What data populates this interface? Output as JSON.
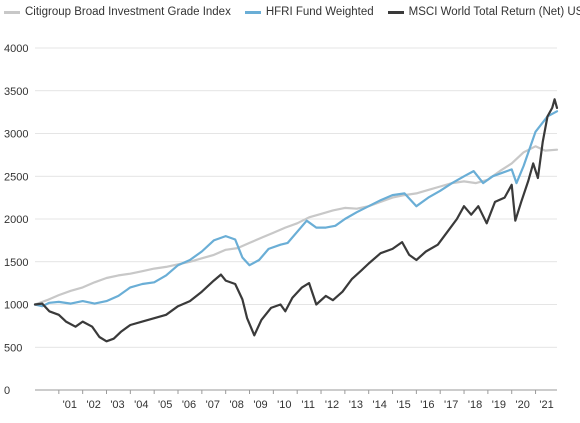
{
  "chart_data": {
    "type": "line",
    "title": "",
    "xlabel": "",
    "ylabel": "",
    "ylim": [
      0,
      4000
    ],
    "y_ticks": [
      0,
      500,
      1000,
      1500,
      2000,
      2500,
      3000,
      3500,
      4000
    ],
    "x_range": [
      2000.0,
      2021.9
    ],
    "x_ticks": [
      {
        "label": "'01",
        "x": 2001
      },
      {
        "label": "'02",
        "x": 2002
      },
      {
        "label": "'03",
        "x": 2003
      },
      {
        "label": "'04",
        "x": 2004
      },
      {
        "label": "'05",
        "x": 2005
      },
      {
        "label": "'06",
        "x": 2006
      },
      {
        "label": "'07",
        "x": 2007
      },
      {
        "label": "'08",
        "x": 2008
      },
      {
        "label": "'09",
        "x": 2009
      },
      {
        "label": "'10",
        "x": 2010
      },
      {
        "label": "'11",
        "x": 2011
      },
      {
        "label": "'12",
        "x": 2012
      },
      {
        "label": "'13",
        "x": 2013
      },
      {
        "label": "'14",
        "x": 2014
      },
      {
        "label": "'15",
        "x": 2015
      },
      {
        "label": "'16",
        "x": 2016
      },
      {
        "label": "'17",
        "x": 2017
      },
      {
        "label": "'18",
        "x": 2018
      },
      {
        "label": "'19",
        "x": 2019
      },
      {
        "label": "'20",
        "x": 2020
      },
      {
        "label": "'21",
        "x": 2021
      }
    ],
    "grid": "horizontal",
    "legend_position": "top",
    "series": [
      {
        "name": "Citigroup Broad Investment Grade Index",
        "color": "#c8c8c8",
        "points": [
          [
            2000.0,
            1000
          ],
          [
            2000.5,
            1050
          ],
          [
            2001.0,
            1110
          ],
          [
            2001.5,
            1160
          ],
          [
            2002.0,
            1200
          ],
          [
            2002.5,
            1260
          ],
          [
            2003.0,
            1310
          ],
          [
            2003.5,
            1340
          ],
          [
            2004.0,
            1360
          ],
          [
            2004.5,
            1390
          ],
          [
            2005.0,
            1420
          ],
          [
            2005.5,
            1440
          ],
          [
            2006.0,
            1470
          ],
          [
            2006.5,
            1500
          ],
          [
            2007.0,
            1540
          ],
          [
            2007.5,
            1580
          ],
          [
            2008.0,
            1640
          ],
          [
            2008.5,
            1660
          ],
          [
            2009.0,
            1720
          ],
          [
            2009.5,
            1780
          ],
          [
            2010.0,
            1840
          ],
          [
            2010.5,
            1900
          ],
          [
            2011.0,
            1950
          ],
          [
            2011.5,
            2020
          ],
          [
            2012.0,
            2060
          ],
          [
            2012.5,
            2100
          ],
          [
            2013.0,
            2130
          ],
          [
            2013.5,
            2120
          ],
          [
            2014.0,
            2150
          ],
          [
            2014.5,
            2200
          ],
          [
            2015.0,
            2250
          ],
          [
            2015.5,
            2280
          ],
          [
            2016.0,
            2300
          ],
          [
            2016.5,
            2340
          ],
          [
            2017.0,
            2380
          ],
          [
            2017.5,
            2420
          ],
          [
            2018.0,
            2440
          ],
          [
            2018.5,
            2420
          ],
          [
            2019.0,
            2460
          ],
          [
            2019.5,
            2560
          ],
          [
            2020.0,
            2650
          ],
          [
            2020.5,
            2780
          ],
          [
            2021.0,
            2850
          ],
          [
            2021.4,
            2800
          ],
          [
            2021.9,
            2810
          ]
        ]
      },
      {
        "name": "HFRI Fund Weighted",
        "color": "#6aaed6",
        "points": [
          [
            2000.0,
            1000
          ],
          [
            2000.3,
            980
          ],
          [
            2000.6,
            1020
          ],
          [
            2001.0,
            1030
          ],
          [
            2001.5,
            1010
          ],
          [
            2002.0,
            1040
          ],
          [
            2002.5,
            1010
          ],
          [
            2003.0,
            1040
          ],
          [
            2003.5,
            1100
          ],
          [
            2004.0,
            1200
          ],
          [
            2004.5,
            1240
          ],
          [
            2005.0,
            1260
          ],
          [
            2005.5,
            1340
          ],
          [
            2006.0,
            1460
          ],
          [
            2006.5,
            1520
          ],
          [
            2007.0,
            1620
          ],
          [
            2007.5,
            1750
          ],
          [
            2008.0,
            1800
          ],
          [
            2008.4,
            1760
          ],
          [
            2008.7,
            1550
          ],
          [
            2009.0,
            1460
          ],
          [
            2009.4,
            1520
          ],
          [
            2009.8,
            1650
          ],
          [
            2010.3,
            1700
          ],
          [
            2010.6,
            1720
          ],
          [
            2011.0,
            1850
          ],
          [
            2011.4,
            1980
          ],
          [
            2011.8,
            1900
          ],
          [
            2012.2,
            1900
          ],
          [
            2012.6,
            1920
          ],
          [
            2013.0,
            2000
          ],
          [
            2013.5,
            2080
          ],
          [
            2014.0,
            2150
          ],
          [
            2014.5,
            2220
          ],
          [
            2015.0,
            2280
          ],
          [
            2015.5,
            2300
          ],
          [
            2016.0,
            2150
          ],
          [
            2016.5,
            2250
          ],
          [
            2017.0,
            2330
          ],
          [
            2017.5,
            2420
          ],
          [
            2018.0,
            2500
          ],
          [
            2018.4,
            2560
          ],
          [
            2018.8,
            2420
          ],
          [
            2019.2,
            2500
          ],
          [
            2019.6,
            2540
          ],
          [
            2020.0,
            2580
          ],
          [
            2020.2,
            2420
          ],
          [
            2020.5,
            2620
          ],
          [
            2021.0,
            3020
          ],
          [
            2021.5,
            3200
          ],
          [
            2021.9,
            3260
          ]
        ]
      },
      {
        "name": "MSCI World Total Return (Net) USD",
        "color": "#3a3a3a",
        "points": [
          [
            2000.0,
            1000
          ],
          [
            2000.3,
            1010
          ],
          [
            2000.6,
            920
          ],
          [
            2001.0,
            880
          ],
          [
            2001.3,
            800
          ],
          [
            2001.7,
            740
          ],
          [
            2002.0,
            800
          ],
          [
            2002.4,
            740
          ],
          [
            2002.7,
            620
          ],
          [
            2003.0,
            570
          ],
          [
            2003.3,
            600
          ],
          [
            2003.6,
            680
          ],
          [
            2004.0,
            760
          ],
          [
            2004.5,
            800
          ],
          [
            2005.0,
            840
          ],
          [
            2005.5,
            880
          ],
          [
            2006.0,
            980
          ],
          [
            2006.5,
            1040
          ],
          [
            2007.0,
            1150
          ],
          [
            2007.5,
            1280
          ],
          [
            2007.8,
            1350
          ],
          [
            2008.0,
            1280
          ],
          [
            2008.4,
            1240
          ],
          [
            2008.7,
            1060
          ],
          [
            2008.9,
            840
          ],
          [
            2009.2,
            640
          ],
          [
            2009.5,
            820
          ],
          [
            2009.9,
            960
          ],
          [
            2010.3,
            1000
          ],
          [
            2010.5,
            920
          ],
          [
            2010.8,
            1080
          ],
          [
            2011.2,
            1200
          ],
          [
            2011.5,
            1250
          ],
          [
            2011.8,
            1000
          ],
          [
            2012.2,
            1100
          ],
          [
            2012.5,
            1050
          ],
          [
            2012.9,
            1150
          ],
          [
            2013.3,
            1300
          ],
          [
            2013.7,
            1400
          ],
          [
            2014.0,
            1480
          ],
          [
            2014.5,
            1600
          ],
          [
            2015.0,
            1650
          ],
          [
            2015.4,
            1730
          ],
          [
            2015.7,
            1580
          ],
          [
            2016.0,
            1520
          ],
          [
            2016.4,
            1620
          ],
          [
            2016.9,
            1700
          ],
          [
            2017.3,
            1850
          ],
          [
            2017.7,
            2000
          ],
          [
            2018.0,
            2150
          ],
          [
            2018.3,
            2050
          ],
          [
            2018.6,
            2150
          ],
          [
            2018.95,
            1950
          ],
          [
            2019.3,
            2200
          ],
          [
            2019.7,
            2250
          ],
          [
            2020.0,
            2400
          ],
          [
            2020.15,
            1980
          ],
          [
            2020.4,
            2200
          ],
          [
            2020.7,
            2450
          ],
          [
            2020.9,
            2650
          ],
          [
            2021.1,
            2480
          ],
          [
            2021.3,
            2900
          ],
          [
            2021.5,
            3200
          ],
          [
            2021.7,
            3300
          ],
          [
            2021.8,
            3400
          ],
          [
            2021.9,
            3300
          ]
        ]
      }
    ]
  }
}
